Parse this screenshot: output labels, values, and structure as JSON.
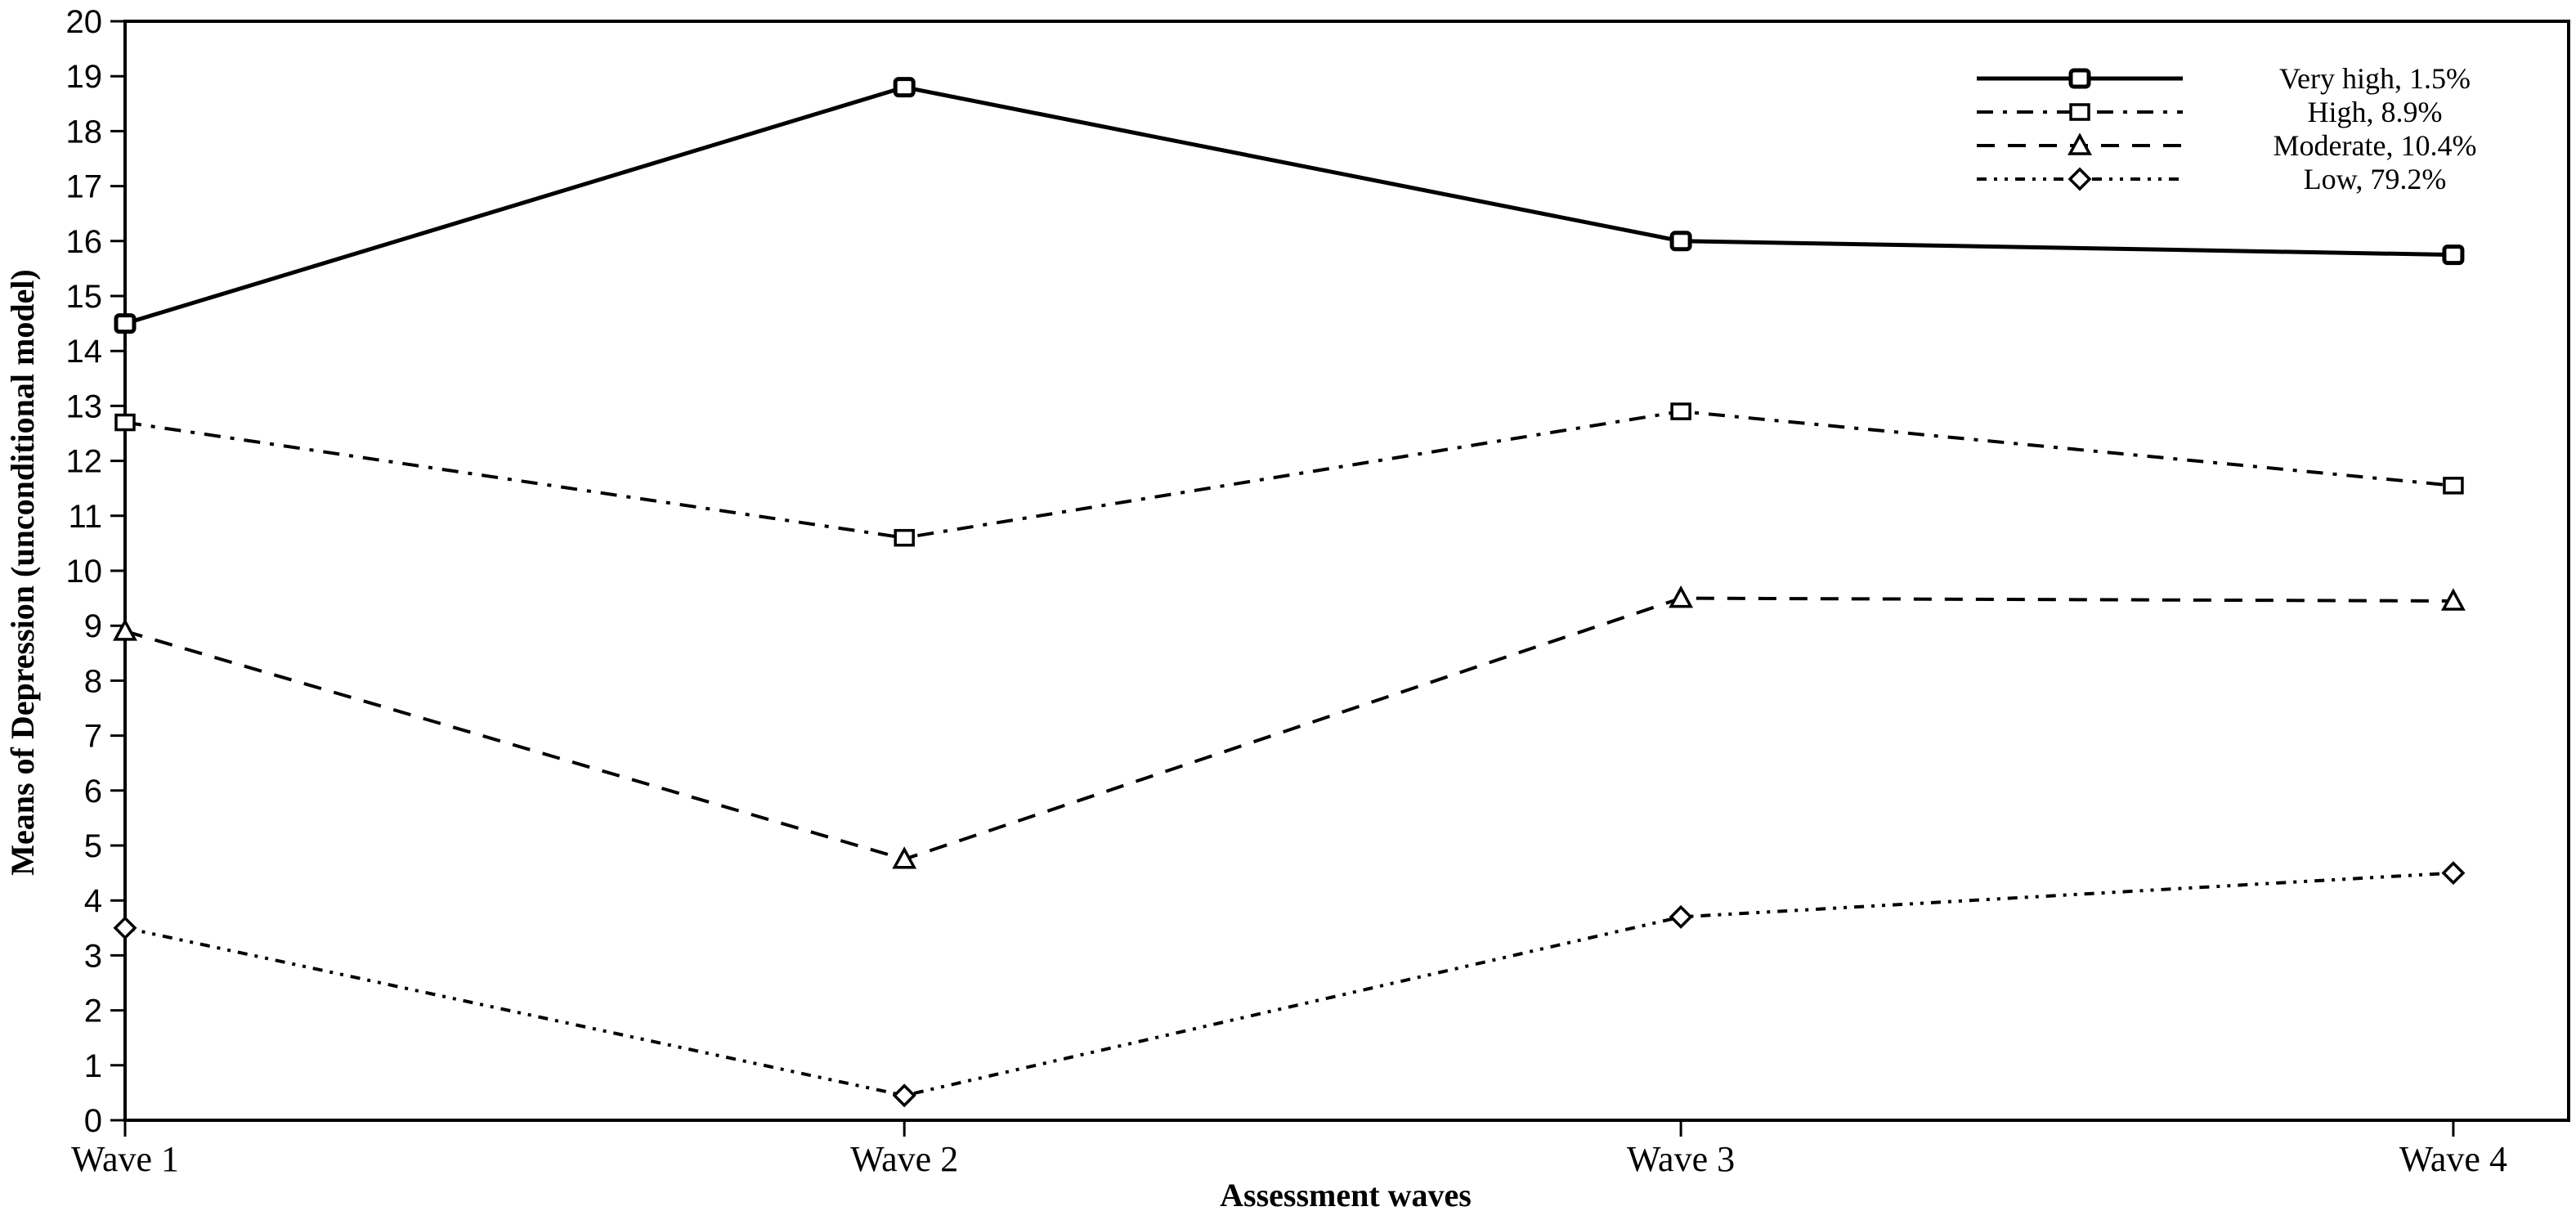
{
  "figure": {
    "background": "#ffffff",
    "foreground": "#000000"
  },
  "axes": {
    "y_title": "Means of Depression (unconditional model)",
    "x_title": "Assessment waves"
  },
  "chart_data": {
    "type": "line",
    "title": "",
    "xlabel": "Assessment waves",
    "ylabel": "Means of Depression (unconditional model)",
    "x_categories": [
      "Wave 1",
      "Wave 2",
      "Wave 3",
      "Wave 4"
    ],
    "ylim": [
      0,
      20
    ],
    "ytick_step": 1,
    "grid": false,
    "legend_position": "top-right",
    "legend_order": [
      "Very high, 1.5%",
      "High, 8.9%",
      "Moderate, 10.4%",
      "Low, 79.2%"
    ],
    "series": [
      {
        "name": "Very high, 1.5%",
        "slug": "very-high",
        "class_share": "1.5%",
        "line": "solid",
        "marker": "square-bold",
        "values": [
          14.5,
          18.8,
          16.0,
          15.75
        ]
      },
      {
        "name": "High, 8.9%",
        "slug": "high",
        "class_share": "8.9%",
        "line": "dash-dot",
        "marker": "square",
        "values": [
          12.7,
          10.6,
          12.9,
          11.55
        ]
      },
      {
        "name": "Moderate, 10.4%",
        "slug": "moderate",
        "class_share": "10.4%",
        "line": "dash",
        "marker": "triangle",
        "values": [
          8.9,
          4.75,
          9.5,
          9.45
        ]
      },
      {
        "name": "Low, 79.2%",
        "slug": "low",
        "class_share": "79.2%",
        "line": "dash-dot-dot",
        "marker": "diamond",
        "values": [
          3.5,
          0.45,
          3.7,
          4.5
        ]
      }
    ],
    "colors": {
      "line": "#000000",
      "marker_fill": "#ffffff",
      "background": "#ffffff"
    }
  }
}
